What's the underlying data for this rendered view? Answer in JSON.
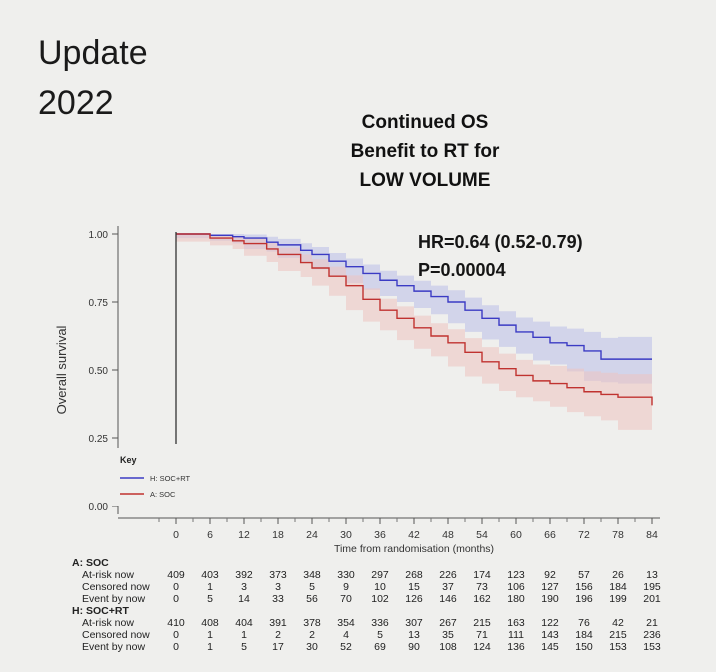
{
  "slide": {
    "title_line1": "Update",
    "title_line2": "2022",
    "subtitle_line1": "Continued OS",
    "subtitle_line2": "Benefit to RT for",
    "subtitle_line3": "LOW VOLUME",
    "hr": "HR=0.64 (0.52-0.79)",
    "p": "P=0.00004"
  },
  "chart_data": {
    "type": "line",
    "xlabel": "Time from randomisation (months)",
    "ylabel": "Overall survival",
    "xlim": [
      0,
      84
    ],
    "ylim": [
      0,
      1
    ],
    "x_ticks": [
      0,
      6,
      12,
      18,
      24,
      30,
      36,
      42,
      48,
      54,
      60,
      66,
      72,
      78,
      84
    ],
    "y_ticks": [
      0.0,
      0.25,
      0.5,
      0.75,
      1.0
    ],
    "y_tick_labels": [
      "0.00",
      "0.25",
      "0.50",
      "0.75",
      "1.00"
    ],
    "grid": false,
    "legend": {
      "title": "Key",
      "position": "bottom-left"
    },
    "series": [
      {
        "name": "H: SOC+RT",
        "color": "#3b3bc4",
        "band_color": "#b9bde8",
        "x": [
          0,
          6,
          10,
          12,
          16,
          18,
          22,
          24,
          27,
          30,
          33,
          36,
          39,
          42,
          45,
          48,
          51,
          54,
          57,
          60,
          63,
          66,
          69,
          72,
          75,
          78,
          84
        ],
        "y": [
          1.0,
          0.995,
          0.99,
          0.985,
          0.97,
          0.96,
          0.94,
          0.925,
          0.9,
          0.88,
          0.855,
          0.83,
          0.81,
          0.79,
          0.77,
          0.75,
          0.72,
          0.69,
          0.665,
          0.64,
          0.62,
          0.6,
          0.59,
          0.57,
          0.54,
          0.54,
          0.54
        ],
        "lower": [
          1.0,
          0.985,
          0.975,
          0.965,
          0.945,
          0.935,
          0.912,
          0.896,
          0.87,
          0.848,
          0.82,
          0.795,
          0.772,
          0.75,
          0.728,
          0.705,
          0.672,
          0.64,
          0.612,
          0.585,
          0.56,
          0.535,
          0.52,
          0.495,
          0.46,
          0.455,
          0.45
        ],
        "upper": [
          1.0,
          1.0,
          1.0,
          0.998,
          0.99,
          0.982,
          0.966,
          0.952,
          0.93,
          0.91,
          0.888,
          0.865,
          0.847,
          0.828,
          0.81,
          0.793,
          0.766,
          0.738,
          0.716,
          0.693,
          0.678,
          0.66,
          0.652,
          0.64,
          0.618,
          0.622,
          0.626
        ]
      },
      {
        "name": "A: SOC",
        "color": "#c0322f",
        "band_color": "#ecc3c0",
        "x": [
          0,
          6,
          10,
          12,
          16,
          18,
          22,
          24,
          27,
          30,
          33,
          36,
          39,
          42,
          45,
          48,
          51,
          54,
          57,
          60,
          63,
          66,
          69,
          72,
          75,
          78,
          84
        ],
        "y": [
          1.0,
          0.985,
          0.975,
          0.965,
          0.945,
          0.925,
          0.895,
          0.875,
          0.845,
          0.81,
          0.76,
          0.72,
          0.69,
          0.655,
          0.625,
          0.6,
          0.565,
          0.53,
          0.505,
          0.48,
          0.46,
          0.45,
          0.435,
          0.42,
          0.41,
          0.4,
          0.37
        ],
        "lower": [
          1.0,
          0.972,
          0.958,
          0.945,
          0.92,
          0.897,
          0.864,
          0.842,
          0.81,
          0.773,
          0.72,
          0.678,
          0.646,
          0.61,
          0.578,
          0.55,
          0.513,
          0.476,
          0.45,
          0.423,
          0.4,
          0.385,
          0.365,
          0.345,
          0.33,
          0.315,
          0.28
        ],
        "upper": [
          1.0,
          0.995,
          0.99,
          0.983,
          0.968,
          0.95,
          0.925,
          0.907,
          0.88,
          0.848,
          0.8,
          0.762,
          0.734,
          0.7,
          0.672,
          0.65,
          0.617,
          0.584,
          0.56,
          0.537,
          0.52,
          0.515,
          0.505,
          0.495,
          0.49,
          0.485,
          0.46
        ]
      }
    ],
    "risk_table": {
      "groups": [
        {
          "name": "A: SOC",
          "rows": [
            {
              "label": "At-risk now",
              "values": [
                409,
                403,
                392,
                373,
                348,
                330,
                297,
                268,
                226,
                174,
                123,
                92,
                57,
                26,
                13
              ]
            },
            {
              "label": "Censored now",
              "values": [
                0,
                1,
                3,
                3,
                5,
                9,
                10,
                15,
                37,
                73,
                106,
                127,
                156,
                184,
                195
              ]
            },
            {
              "label": "Event by now",
              "values": [
                0,
                5,
                14,
                33,
                56,
                70,
                102,
                126,
                146,
                162,
                180,
                190,
                196,
                199,
                201
              ]
            }
          ]
        },
        {
          "name": "H: SOC+RT",
          "rows": [
            {
              "label": "At-risk now",
              "values": [
                410,
                408,
                404,
                391,
                378,
                354,
                336,
                307,
                267,
                215,
                163,
                122,
                76,
                42,
                21
              ]
            },
            {
              "label": "Censored now",
              "values": [
                0,
                1,
                1,
                2,
                2,
                4,
                5,
                13,
                35,
                71,
                111,
                143,
                184,
                215,
                236
              ]
            },
            {
              "label": "Event by now",
              "values": [
                0,
                1,
                5,
                17,
                30,
                52,
                69,
                90,
                108,
                124,
                136,
                145,
                150,
                153,
                153
              ]
            }
          ]
        }
      ]
    }
  }
}
